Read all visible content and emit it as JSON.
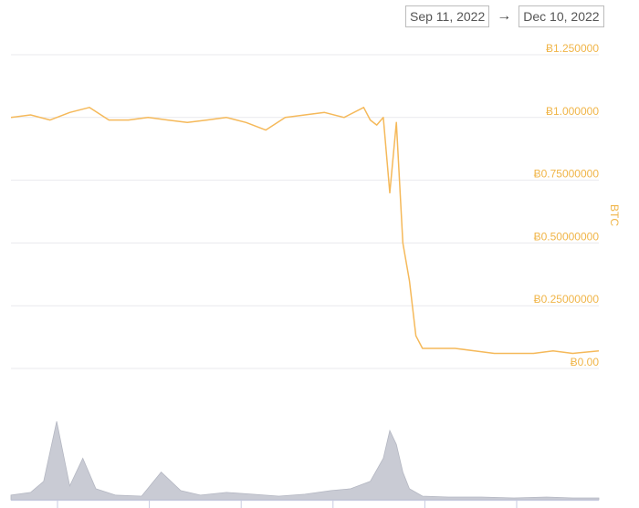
{
  "date_range": {
    "start": "Sep 11, 2022",
    "arrow": "→",
    "end": "Dec 10, 2022"
  },
  "colors": {
    "price_line": "#f5b95a",
    "axis_text": "#f0b548",
    "grid": "#e9e9ee",
    "volume": "#c9cbd4",
    "volume_stroke": "#b4b7c2",
    "bottom_axis": "#c7cbe0"
  },
  "chart_data": {
    "type": "line",
    "ylabel": "BTC",
    "y_ticks": [
      "Ƀ0.00",
      "Ƀ0.25000000",
      "Ƀ0.50000000",
      "Ƀ0.75000000",
      "Ƀ1.000000",
      "Ƀ1.250000"
    ],
    "y_tick_values": [
      0,
      0.25,
      0.5,
      0.75,
      1.0,
      1.25
    ],
    "ylim": [
      0,
      1.25
    ],
    "x_range": [
      "2022-09-11",
      "2022-12-10"
    ],
    "grid": true,
    "series": [
      {
        "x": [
          "2022-09-11",
          "2022-09-14",
          "2022-09-17",
          "2022-09-20",
          "2022-09-23",
          "2022-09-26",
          "2022-09-29",
          "2022-10-02",
          "2022-10-05",
          "2022-10-08",
          "2022-10-11",
          "2022-10-14",
          "2022-10-17",
          "2022-10-20",
          "2022-10-23",
          "2022-10-26",
          "2022-10-29",
          "2022-11-01",
          "2022-11-04",
          "2022-11-05",
          "2022-11-06",
          "2022-11-07",
          "2022-11-08",
          "2022-11-09",
          "2022-11-10",
          "2022-11-11",
          "2022-11-12",
          "2022-11-13",
          "2022-11-15",
          "2022-11-18",
          "2022-11-21",
          "2022-11-24",
          "2022-11-27",
          "2022-11-30",
          "2022-12-03",
          "2022-12-06",
          "2022-12-10"
        ],
        "values": [
          1.0,
          1.01,
          0.99,
          1.02,
          1.04,
          0.99,
          0.99,
          1.0,
          0.99,
          0.98,
          0.99,
          1.0,
          0.98,
          0.95,
          1.0,
          1.01,
          1.02,
          1.0,
          1.04,
          0.99,
          0.97,
          1.0,
          0.7,
          0.98,
          0.5,
          0.35,
          0.13,
          0.08,
          0.08,
          0.08,
          0.07,
          0.06,
          0.06,
          0.06,
          0.07,
          0.06,
          0.07
        ]
      }
    ],
    "volume": {
      "x": [
        "2022-09-11",
        "2022-09-14",
        "2022-09-16",
        "2022-09-18",
        "2022-09-20",
        "2022-09-22",
        "2022-09-24",
        "2022-09-27",
        "2022-10-01",
        "2022-10-04",
        "2022-10-07",
        "2022-10-10",
        "2022-10-14",
        "2022-10-18",
        "2022-10-22",
        "2022-10-26",
        "2022-10-30",
        "2022-11-02",
        "2022-11-05",
        "2022-11-07",
        "2022-11-08",
        "2022-11-09",
        "2022-11-10",
        "2022-11-11",
        "2022-11-13",
        "2022-11-17",
        "2022-11-22",
        "2022-11-27",
        "2022-12-02",
        "2022-12-06",
        "2022-12-10"
      ],
      "values": [
        5,
        8,
        20,
        85,
        15,
        45,
        12,
        5,
        4,
        30,
        10,
        5,
        8,
        6,
        4,
        6,
        10,
        12,
        20,
        45,
        75,
        60,
        30,
        12,
        4,
        3,
        3,
        2,
        3,
        2,
        2
      ]
    }
  }
}
